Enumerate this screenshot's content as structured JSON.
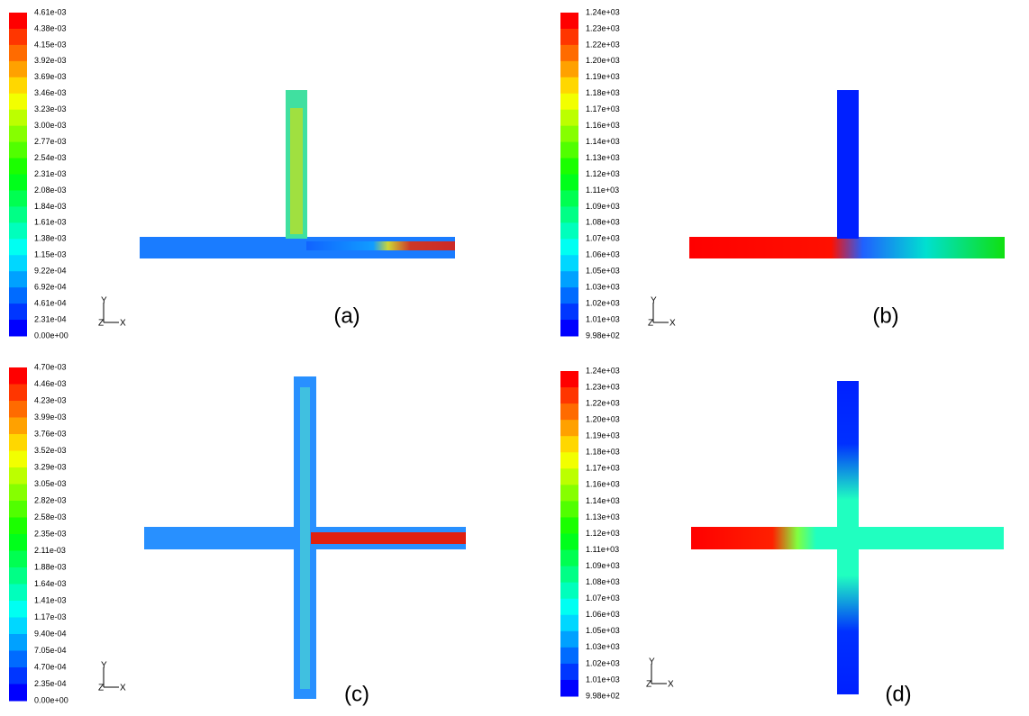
{
  "panels": [
    {
      "label": "(a)",
      "colorbar_labels": [
        "4.61e-03",
        "4.38e-03",
        "4.15e-03",
        "3.92e-03",
        "3.69e-03",
        "3.46e-03",
        "3.23e-03",
        "3.00e-03",
        "2.77e-03",
        "2.54e-03",
        "2.31e-03",
        "2.08e-03",
        "1.84e-03",
        "1.61e-03",
        "1.38e-03",
        "1.15e-03",
        "9.22e-04",
        "6.92e-04",
        "4.61e-04",
        "2.31e-04",
        "0.00e+00"
      ],
      "axis_labels": [
        "Y",
        "Z",
        "X"
      ]
    },
    {
      "label": "(b)",
      "colorbar_labels": [
        "1.24e+03",
        "1.23e+03",
        "1.22e+03",
        "1.20e+03",
        "1.19e+03",
        "1.18e+03",
        "1.17e+03",
        "1.16e+03",
        "1.14e+03",
        "1.13e+03",
        "1.12e+03",
        "1.11e+03",
        "1.09e+03",
        "1.08e+03",
        "1.07e+03",
        "1.06e+03",
        "1.05e+03",
        "1.03e+03",
        "1.02e+03",
        "1.01e+03",
        "9.98e+02"
      ],
      "axis_labels": [
        "Y",
        "Z",
        "X"
      ]
    },
    {
      "label": "(c)",
      "colorbar_labels": [
        "4.70e-03",
        "4.46e-03",
        "4.23e-03",
        "3.99e-03",
        "3.76e-03",
        "3.52e-03",
        "3.29e-03",
        "3.05e-03",
        "2.82e-03",
        "2.58e-03",
        "2.35e-03",
        "2.11e-03",
        "1.88e-03",
        "1.64e-03",
        "1.41e-03",
        "1.17e-03",
        "9.40e-04",
        "7.05e-04",
        "4.70e-04",
        "2.35e-04",
        "0.00e+00"
      ],
      "axis_labels": [
        "Y",
        "Z",
        "X"
      ]
    },
    {
      "label": "(d)",
      "colorbar_labels": [
        "1.24e+03",
        "1.23e+03",
        "1.22e+03",
        "1.20e+03",
        "1.19e+03",
        "1.18e+03",
        "1.17e+03",
        "1.16e+03",
        "1.14e+03",
        "1.13e+03",
        "1.12e+03",
        "1.11e+03",
        "1.09e+03",
        "1.08e+03",
        "1.07e+03",
        "1.06e+03",
        "1.05e+03",
        "1.03e+03",
        "1.02e+03",
        "1.01e+03",
        "9.98e+02"
      ],
      "axis_labels": [
        "Y",
        "Z",
        "X"
      ]
    }
  ]
}
